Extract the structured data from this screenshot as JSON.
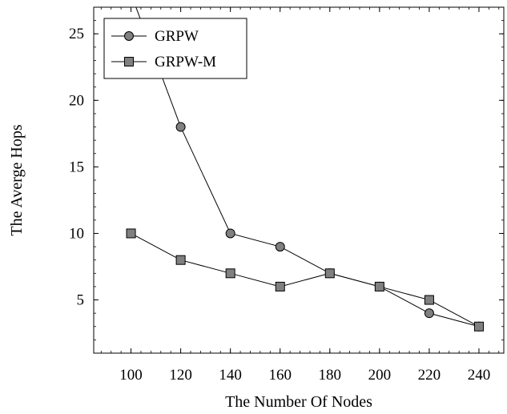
{
  "chart_data": {
    "type": "line",
    "title": "",
    "xlabel": "The Number Of Nodes",
    "ylabel": "The Averge Hops",
    "xlim": [
      85,
      250
    ],
    "ylim": [
      1,
      27
    ],
    "xticks": [
      100,
      120,
      140,
      160,
      180,
      200,
      220,
      240
    ],
    "yticks": [
      5,
      10,
      15,
      20,
      25
    ],
    "legend_position": "top-left",
    "grid": false,
    "series": [
      {
        "name": "GRPW",
        "marker": "circle",
        "color": "#808080",
        "x": [
          100,
          120,
          140,
          160,
          180,
          200,
          220,
          240
        ],
        "y": [
          28,
          18,
          10,
          9,
          7,
          6,
          4,
          3
        ]
      },
      {
        "name": "GRPW-M",
        "marker": "square",
        "color": "#808080",
        "x": [
          100,
          120,
          140,
          160,
          180,
          200,
          220,
          240
        ],
        "y": [
          10,
          8,
          7,
          6,
          7,
          6,
          5,
          3
        ]
      }
    ]
  }
}
